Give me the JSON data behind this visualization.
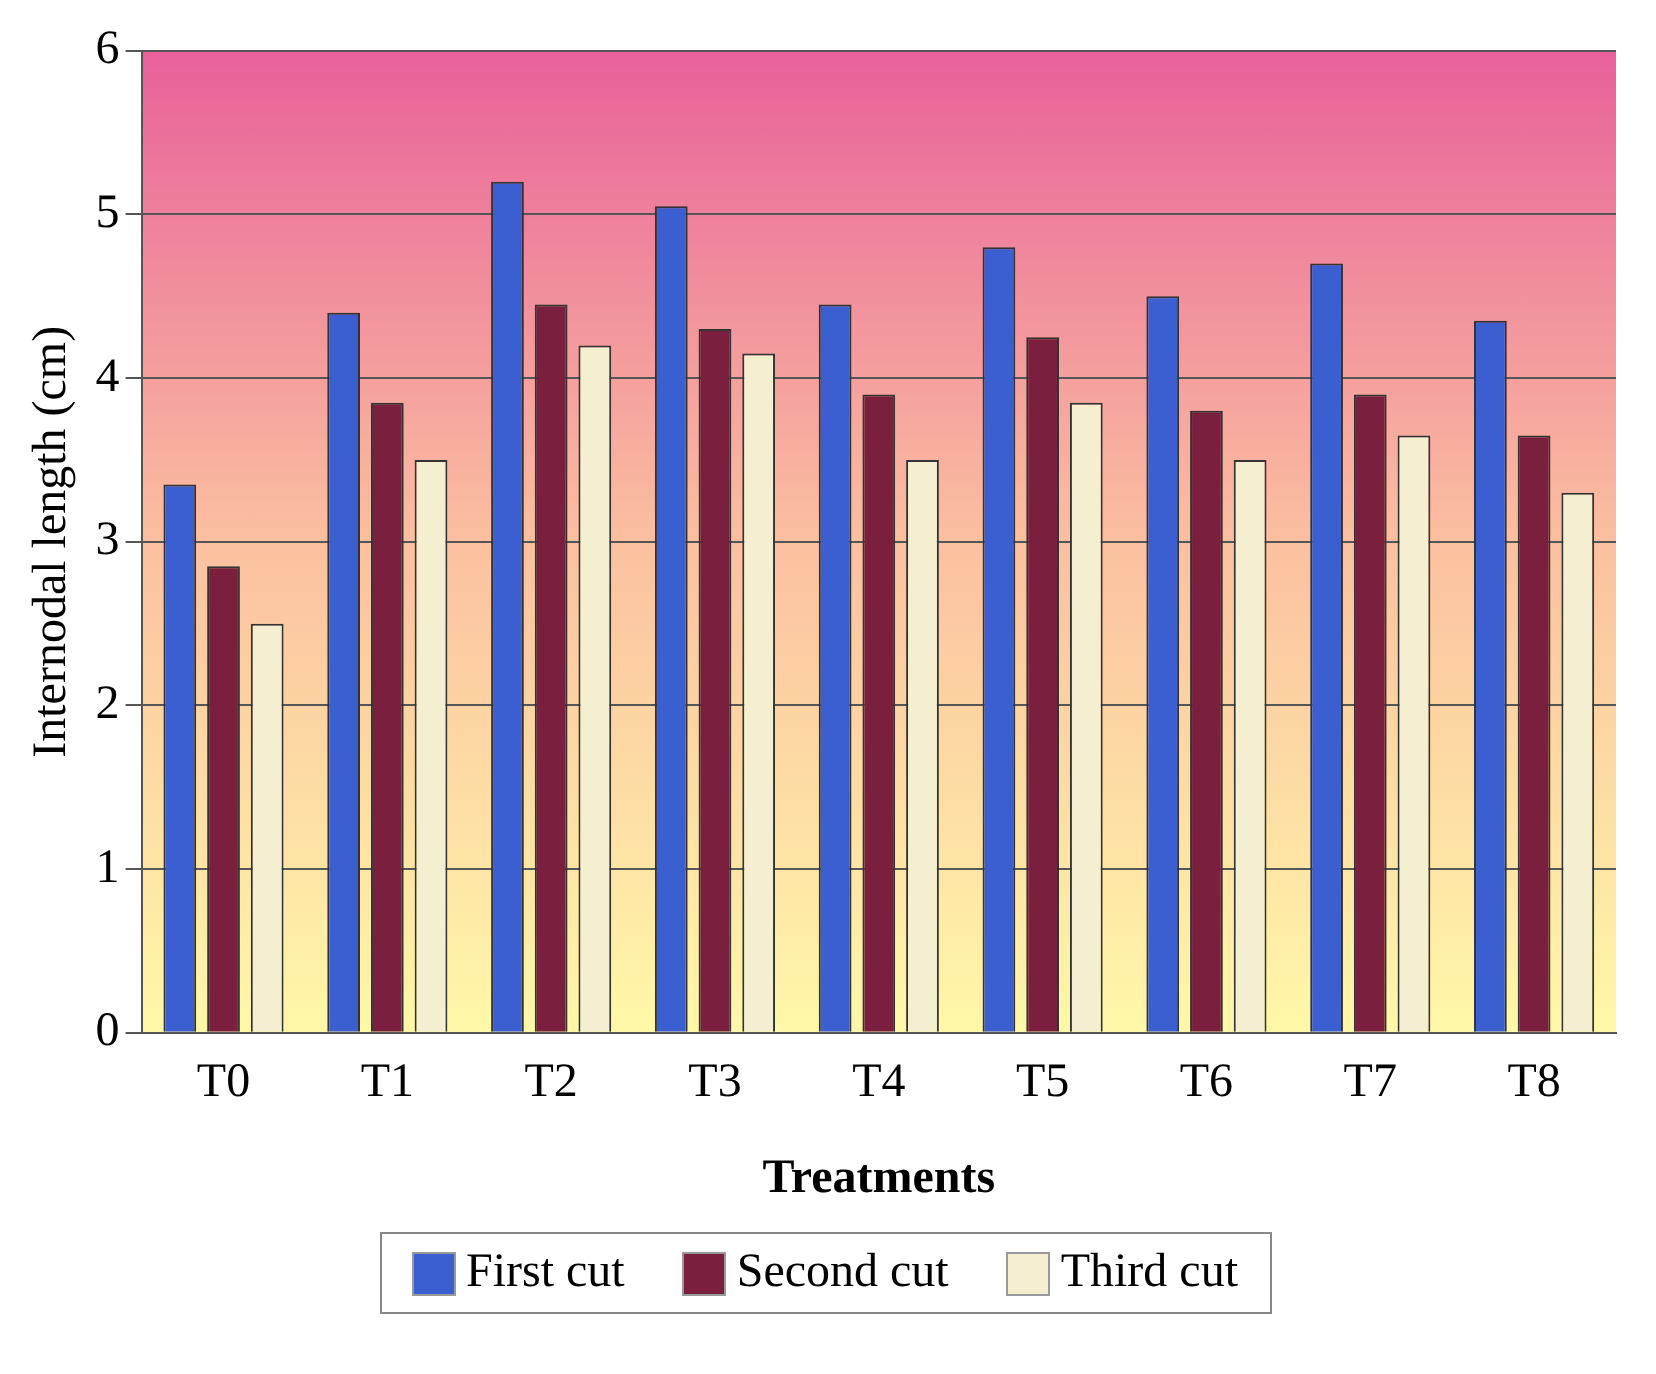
{
  "chart_data": {
    "type": "bar",
    "xlabel": "Treatments",
    "ylabel": "Internodal length (cm)",
    "categories": [
      "T0",
      "T1",
      "T2",
      "T3",
      "T4",
      "T5",
      "T6",
      "T7",
      "T8"
    ],
    "series": [
      {
        "name": "First cut",
        "color": "#3b5fd0",
        "values": [
          3.35,
          4.4,
          5.2,
          5.05,
          4.45,
          4.8,
          4.5,
          4.7,
          4.35
        ]
      },
      {
        "name": "Second cut",
        "color": "#7a1f3d",
        "values": [
          2.85,
          3.85,
          4.45,
          4.3,
          3.9,
          4.25,
          3.8,
          3.9,
          3.65
        ]
      },
      {
        "name": "Third cut",
        "color": "#f3efd0",
        "values": [
          2.5,
          3.5,
          4.2,
          4.15,
          3.5,
          3.85,
          3.5,
          3.65,
          3.3
        ]
      }
    ],
    "ylim": [
      0,
      6
    ],
    "yticks": [
      0,
      1,
      2,
      3,
      4,
      5,
      6
    ],
    "grid": "y",
    "legend": "bottom"
  }
}
